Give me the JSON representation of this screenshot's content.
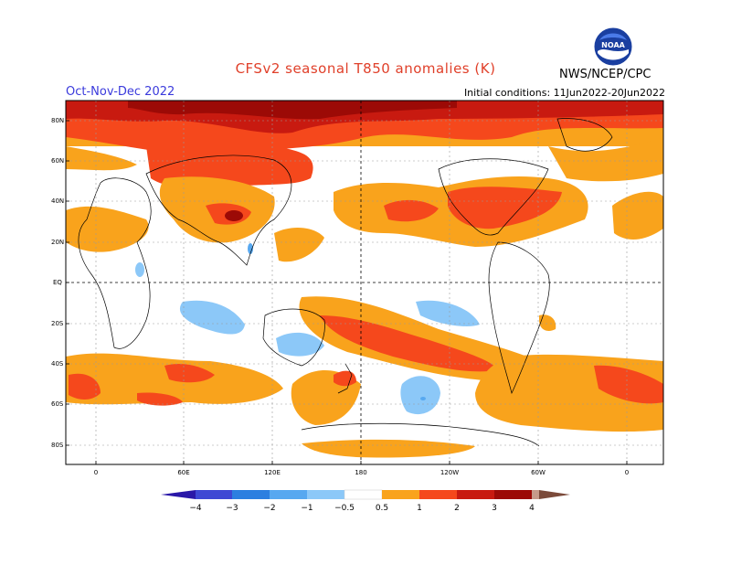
{
  "title": "CFSv2 seasonal T850 anomalies (K)",
  "season": "Oct-Nov-Dec 2022",
  "initial_conditions": "Initial conditions: 11Jun2022-20Jun2022",
  "agency": "NWS/NCEP/CPC",
  "logo_text": "NOAA",
  "latitude_labels": [
    "80N",
    "60N",
    "40N",
    "20N",
    "EQ",
    "20S",
    "40S",
    "60S",
    "80S"
  ],
  "longitude_labels": [
    "0",
    "60E",
    "120E",
    "180",
    "120W",
    "60W",
    "0"
  ],
  "colorbar": {
    "labels": [
      "−4",
      "−3",
      "−2",
      "−1",
      "−0.5",
      "0.5",
      "1",
      "2",
      "3",
      "4"
    ],
    "colors": [
      "#2a18a8",
      "#3e48d4",
      "#2c7fe0",
      "#57a8f0",
      "#8cc8f8",
      "#ffffff",
      "#f9a31c",
      "#f5481c",
      "#c81a10",
      "#9c0a06",
      "#c69a8a",
      "#7b4a3a"
    ]
  },
  "map_colors": {
    "c05": "#f9a31c",
    "c1": "#f5481c",
    "c2": "#c81a10",
    "c3": "#9c0a06",
    "cneg05": "#8cc8f8",
    "cneg1": "#57a8f0"
  }
}
